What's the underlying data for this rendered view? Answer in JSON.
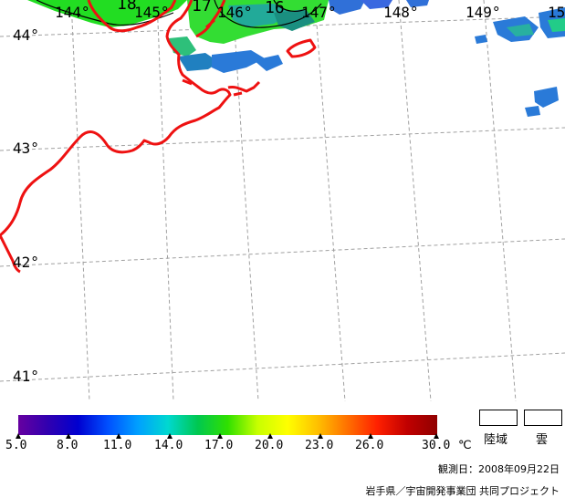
{
  "map": {
    "longitude_labels": [
      "144°",
      "145°",
      "146°",
      "147°",
      "148°",
      "149°",
      "15"
    ],
    "latitude_labels": [
      "44°",
      "43°",
      "42°",
      "41°"
    ],
    "contour_labels": [
      "18",
      "17",
      "16"
    ]
  },
  "colorbar": {
    "ticks": [
      "5.0",
      "8.0",
      "11.0",
      "14.0",
      "17.0",
      "20.0",
      "23.0",
      "26.0",
      "30.0"
    ],
    "unit": "℃",
    "colors": [
      "#6600a0",
      "#3000b0",
      "#0000d0",
      "#0050ff",
      "#00a0ff",
      "#00d8d0",
      "#00c850",
      "#30e000",
      "#c8ff00",
      "#ffff00",
      "#ffc000",
      "#ff7000",
      "#ff2000",
      "#c00000",
      "#900000"
    ]
  },
  "legend": {
    "land_label": "陸域",
    "cloud_label": "雲"
  },
  "footer": {
    "observation_date": "観測日：2008年09月22日",
    "credit": "岩手県／宇宙開発事業団 共同プロジェクト"
  },
  "colors": {
    "coastline": "#ee1111",
    "grid": "#999999"
  }
}
